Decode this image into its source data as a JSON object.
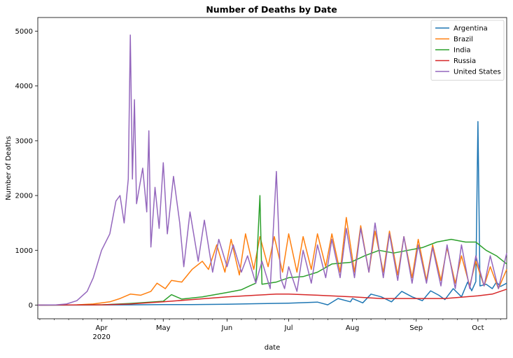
{
  "chart_data": {
    "type": "line",
    "title": "Number of Deaths by Date",
    "xlabel": "date",
    "ylabel": "Number of Deaths",
    "x_start": "2020-03-01",
    "x_end": "2020-10-15",
    "ylim": [
      -250,
      5250
    ],
    "yticks": [
      0,
      1000,
      2000,
      3000,
      4000,
      5000
    ],
    "xticks": [
      {
        "date": "2020-04-01",
        "label": "Apr",
        "sublabel": "2020"
      },
      {
        "date": "2020-05-01",
        "label": "May",
        "sublabel": ""
      },
      {
        "date": "2020-06-01",
        "label": "Jun",
        "sublabel": ""
      },
      {
        "date": "2020-07-01",
        "label": "Jul",
        "sublabel": ""
      },
      {
        "date": "2020-08-01",
        "label": "Aug",
        "sublabel": ""
      },
      {
        "date": "2020-09-01",
        "label": "Sep",
        "sublabel": ""
      },
      {
        "date": "2020-10-01",
        "label": "Oct",
        "sublabel": ""
      }
    ],
    "legend_position": "top-right",
    "series": [
      {
        "name": "Argentina",
        "color": "#1f77b4",
        "points": [
          [
            "2020-03-01",
            0
          ],
          [
            "2020-04-01",
            2
          ],
          [
            "2020-04-15",
            5
          ],
          [
            "2020-05-01",
            8
          ],
          [
            "2020-05-15",
            10
          ],
          [
            "2020-06-01",
            15
          ],
          [
            "2020-06-15",
            25
          ],
          [
            "2020-07-01",
            35
          ],
          [
            "2020-07-15",
            55
          ],
          [
            "2020-07-20",
            5
          ],
          [
            "2020-07-25",
            120
          ],
          [
            "2020-07-31",
            60
          ],
          [
            "2020-08-01",
            120
          ],
          [
            "2020-08-06",
            40
          ],
          [
            "2020-08-10",
            200
          ],
          [
            "2020-08-15",
            150
          ],
          [
            "2020-08-20",
            60
          ],
          [
            "2020-08-25",
            250
          ],
          [
            "2020-08-30",
            150
          ],
          [
            "2020-09-04",
            80
          ],
          [
            "2020-09-08",
            260
          ],
          [
            "2020-09-12",
            180
          ],
          [
            "2020-09-15",
            100
          ],
          [
            "2020-09-19",
            300
          ],
          [
            "2020-09-23",
            150
          ],
          [
            "2020-09-26",
            420
          ],
          [
            "2020-09-28",
            260
          ],
          [
            "2020-09-30",
            430
          ],
          [
            "2020-10-01",
            3350
          ],
          [
            "2020-10-02",
            350
          ],
          [
            "2020-10-05",
            380
          ],
          [
            "2020-10-08",
            300
          ],
          [
            "2020-10-10",
            420
          ],
          [
            "2020-10-12",
            340
          ],
          [
            "2020-10-15",
            400
          ]
        ]
      },
      {
        "name": "Brazil",
        "color": "#ff7f0e",
        "points": [
          [
            "2020-03-01",
            0
          ],
          [
            "2020-03-20",
            5
          ],
          [
            "2020-03-28",
            20
          ],
          [
            "2020-04-05",
            60
          ],
          [
            "2020-04-10",
            120
          ],
          [
            "2020-04-15",
            200
          ],
          [
            "2020-04-20",
            180
          ],
          [
            "2020-04-25",
            250
          ],
          [
            "2020-04-28",
            400
          ],
          [
            "2020-05-02",
            300
          ],
          [
            "2020-05-05",
            450
          ],
          [
            "2020-05-10",
            420
          ],
          [
            "2020-05-15",
            650
          ],
          [
            "2020-05-20",
            800
          ],
          [
            "2020-05-23",
            650
          ],
          [
            "2020-05-27",
            1100
          ],
          [
            "2020-05-31",
            600
          ],
          [
            "2020-06-03",
            1200
          ],
          [
            "2020-06-07",
            550
          ],
          [
            "2020-06-10",
            1300
          ],
          [
            "2020-06-14",
            650
          ],
          [
            "2020-06-17",
            1250
          ],
          [
            "2020-06-21",
            700
          ],
          [
            "2020-06-24",
            1250
          ],
          [
            "2020-06-28",
            600
          ],
          [
            "2020-07-01",
            1300
          ],
          [
            "2020-07-05",
            600
          ],
          [
            "2020-07-08",
            1250
          ],
          [
            "2020-07-12",
            650
          ],
          [
            "2020-07-15",
            1300
          ],
          [
            "2020-07-19",
            700
          ],
          [
            "2020-07-22",
            1300
          ],
          [
            "2020-07-26",
            600
          ],
          [
            "2020-07-29",
            1600
          ],
          [
            "2020-08-02",
            600
          ],
          [
            "2020-08-05",
            1450
          ],
          [
            "2020-08-09",
            600
          ],
          [
            "2020-08-12",
            1350
          ],
          [
            "2020-08-16",
            600
          ],
          [
            "2020-08-19",
            1350
          ],
          [
            "2020-08-23",
            550
          ],
          [
            "2020-08-26",
            1250
          ],
          [
            "2020-08-30",
            500
          ],
          [
            "2020-09-02",
            1200
          ],
          [
            "2020-09-06",
            450
          ],
          [
            "2020-09-09",
            1100
          ],
          [
            "2020-09-13",
            450
          ],
          [
            "2020-09-16",
            1050
          ],
          [
            "2020-09-20",
            400
          ],
          [
            "2020-09-23",
            900
          ],
          [
            "2020-09-27",
            350
          ],
          [
            "2020-09-30",
            800
          ],
          [
            "2020-10-04",
            350
          ],
          [
            "2020-10-07",
            700
          ],
          [
            "2020-10-11",
            300
          ],
          [
            "2020-10-15",
            650
          ]
        ]
      },
      {
        "name": "India",
        "color": "#2ca02c",
        "points": [
          [
            "2020-03-01",
            0
          ],
          [
            "2020-04-01",
            5
          ],
          [
            "2020-04-15",
            30
          ],
          [
            "2020-05-01",
            70
          ],
          [
            "2020-05-05",
            190
          ],
          [
            "2020-05-10",
            110
          ],
          [
            "2020-05-20",
            150
          ],
          [
            "2020-06-01",
            230
          ],
          [
            "2020-06-08",
            280
          ],
          [
            "2020-06-12",
            350
          ],
          [
            "2020-06-15",
            400
          ],
          [
            "2020-06-17",
            2000
          ],
          [
            "2020-06-18",
            380
          ],
          [
            "2020-06-25",
            420
          ],
          [
            "2020-07-01",
            500
          ],
          [
            "2020-07-08",
            520
          ],
          [
            "2020-07-15",
            600
          ],
          [
            "2020-07-22",
            750
          ],
          [
            "2020-07-31",
            780
          ],
          [
            "2020-08-07",
            900
          ],
          [
            "2020-08-14",
            1000
          ],
          [
            "2020-08-21",
            950
          ],
          [
            "2020-08-28",
            1000
          ],
          [
            "2020-09-04",
            1050
          ],
          [
            "2020-09-11",
            1150
          ],
          [
            "2020-09-18",
            1200
          ],
          [
            "2020-09-25",
            1150
          ],
          [
            "2020-09-30",
            1150
          ],
          [
            "2020-10-05",
            1000
          ],
          [
            "2020-10-10",
            900
          ],
          [
            "2020-10-15",
            750
          ]
        ]
      },
      {
        "name": "Russia",
        "color": "#d62728",
        "points": [
          [
            "2020-03-01",
            0
          ],
          [
            "2020-04-01",
            5
          ],
          [
            "2020-04-15",
            20
          ],
          [
            "2020-05-01",
            60
          ],
          [
            "2020-05-15",
            100
          ],
          [
            "2020-06-01",
            150
          ],
          [
            "2020-06-15",
            180
          ],
          [
            "2020-06-25",
            200
          ],
          [
            "2020-07-01",
            200
          ],
          [
            "2020-07-15",
            180
          ],
          [
            "2020-08-01",
            150
          ],
          [
            "2020-08-15",
            120
          ],
          [
            "2020-09-01",
            120
          ],
          [
            "2020-09-15",
            120
          ],
          [
            "2020-10-01",
            170
          ],
          [
            "2020-10-08",
            200
          ],
          [
            "2020-10-15",
            290
          ]
        ]
      },
      {
        "name": "United States",
        "color": "#9467bd",
        "points": [
          [
            "2020-03-01",
            0
          ],
          [
            "2020-03-10",
            5
          ],
          [
            "2020-03-15",
            20
          ],
          [
            "2020-03-20",
            80
          ],
          [
            "2020-03-25",
            250
          ],
          [
            "2020-03-28",
            500
          ],
          [
            "2020-04-01",
            1000
          ],
          [
            "2020-04-05",
            1300
          ],
          [
            "2020-04-08",
            1900
          ],
          [
            "2020-04-10",
            2000
          ],
          [
            "2020-04-12",
            1500
          ],
          [
            "2020-04-14",
            2300
          ],
          [
            "2020-04-15",
            4930
          ],
          [
            "2020-04-16",
            2300
          ],
          [
            "2020-04-17",
            3750
          ],
          [
            "2020-04-18",
            1850
          ],
          [
            "2020-04-21",
            2500
          ],
          [
            "2020-04-23",
            1700
          ],
          [
            "2020-04-24",
            3180
          ],
          [
            "2020-04-25",
            1060
          ],
          [
            "2020-04-27",
            2150
          ],
          [
            "2020-04-29",
            1400
          ],
          [
            "2020-05-01",
            2600
          ],
          [
            "2020-05-03",
            1300
          ],
          [
            "2020-05-06",
            2350
          ],
          [
            "2020-05-09",
            1500
          ],
          [
            "2020-05-11",
            700
          ],
          [
            "2020-05-14",
            1700
          ],
          [
            "2020-05-18",
            800
          ],
          [
            "2020-05-21",
            1550
          ],
          [
            "2020-05-25",
            600
          ],
          [
            "2020-05-28",
            1200
          ],
          [
            "2020-06-01",
            700
          ],
          [
            "2020-06-04",
            1100
          ],
          [
            "2020-06-08",
            600
          ],
          [
            "2020-06-11",
            900
          ],
          [
            "2020-06-15",
            400
          ],
          [
            "2020-06-18",
            800
          ],
          [
            "2020-06-22",
            300
          ],
          [
            "2020-06-25",
            2440
          ],
          [
            "2020-06-27",
            500
          ],
          [
            "2020-06-29",
            300
          ],
          [
            "2020-07-01",
            700
          ],
          [
            "2020-07-05",
            250
          ],
          [
            "2020-07-08",
            1000
          ],
          [
            "2020-07-12",
            400
          ],
          [
            "2020-07-15",
            1100
          ],
          [
            "2020-07-19",
            500
          ],
          [
            "2020-07-22",
            1200
          ],
          [
            "2020-07-26",
            500
          ],
          [
            "2020-07-29",
            1400
          ],
          [
            "2020-08-02",
            500
          ],
          [
            "2020-08-05",
            1400
          ],
          [
            "2020-08-09",
            600
          ],
          [
            "2020-08-12",
            1500
          ],
          [
            "2020-08-16",
            500
          ],
          [
            "2020-08-19",
            1300
          ],
          [
            "2020-08-23",
            450
          ],
          [
            "2020-08-26",
            1250
          ],
          [
            "2020-08-30",
            400
          ],
          [
            "2020-09-02",
            1100
          ],
          [
            "2020-09-06",
            400
          ],
          [
            "2020-09-09",
            1050
          ],
          [
            "2020-09-13",
            350
          ],
          [
            "2020-09-16",
            1100
          ],
          [
            "2020-09-20",
            300
          ],
          [
            "2020-09-23",
            1100
          ],
          [
            "2020-09-27",
            300
          ],
          [
            "2020-09-30",
            900
          ],
          [
            "2020-10-04",
            350
          ],
          [
            "2020-10-07",
            900
          ],
          [
            "2020-10-11",
            300
          ],
          [
            "2020-10-15",
            950
          ]
        ]
      }
    ]
  }
}
